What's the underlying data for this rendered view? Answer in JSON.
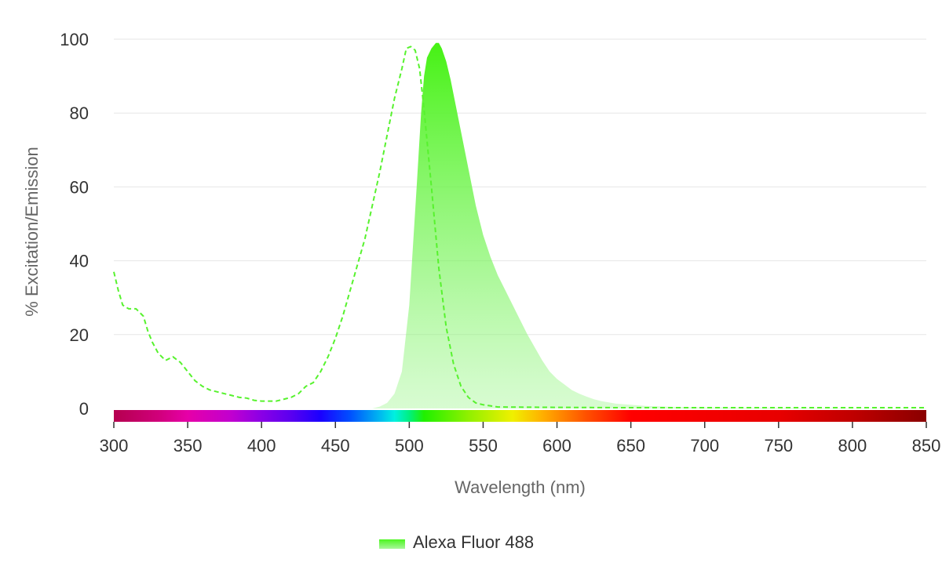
{
  "chart_data": {
    "type": "area",
    "xlabel": "Wavelength (nm)",
    "ylabel": "% Excitation/Emission",
    "xlim": [
      300,
      850
    ],
    "ylim": [
      0,
      100
    ],
    "x_ticks": [
      300,
      350,
      400,
      450,
      500,
      550,
      600,
      650,
      700,
      750,
      800,
      850
    ],
    "y_ticks": [
      0,
      20,
      40,
      60,
      80,
      100
    ],
    "grid": true,
    "legend_position": "bottom",
    "spectrum_bar": "visible",
    "series": [
      {
        "name": "Alexa Fluor 488",
        "role": "excitation",
        "style": "dashed-line",
        "color": "#57F22E",
        "x": [
          300,
          303,
          306,
          310,
          315,
          320,
          323,
          326,
          330,
          335,
          340,
          345,
          350,
          355,
          360,
          365,
          370,
          375,
          380,
          385,
          390,
          395,
          400,
          405,
          410,
          415,
          420,
          425,
          430,
          435,
          440,
          445,
          450,
          455,
          460,
          465,
          470,
          475,
          480,
          485,
          490,
          495,
          498,
          501,
          504,
          507,
          510,
          515,
          520,
          525,
          530,
          535,
          540,
          545,
          550,
          560,
          600,
          650,
          700,
          750,
          800,
          850
        ],
        "y": [
          37,
          32,
          28,
          27,
          27,
          25,
          21,
          18,
          15,
          13,
          14,
          12.5,
          10,
          7.5,
          6,
          5,
          4.5,
          4,
          3.5,
          3,
          2.8,
          2.2,
          2,
          2,
          2,
          2.5,
          3,
          4,
          6,
          7,
          10,
          14,
          19,
          25,
          32,
          39,
          46,
          55,
          64,
          74,
          84,
          92,
          97.5,
          98,
          97,
          92,
          81,
          60,
          38,
          22,
          12,
          6,
          3,
          1.5,
          1,
          0.4,
          0.3,
          0.2,
          0.2,
          0.2,
          0.2,
          0.2
        ]
      },
      {
        "name": "Alexa Fluor 488",
        "role": "emission",
        "style": "filled-area",
        "color": "#4CF51F",
        "x": [
          475,
          480,
          485,
          490,
          495,
          500,
          505,
          508,
          510,
          512,
          515,
          518,
          520,
          522,
          525,
          528,
          530,
          535,
          540,
          545,
          550,
          555,
          560,
          565,
          570,
          575,
          580,
          585,
          590,
          595,
          600,
          605,
          610,
          615,
          620,
          625,
          630,
          640,
          650,
          660,
          680,
          700,
          750,
          800,
          850
        ],
        "y": [
          0,
          0.5,
          1.5,
          4,
          10,
          28,
          60,
          80,
          90,
          95,
          97.5,
          99,
          99,
          97.5,
          94,
          89,
          85,
          75,
          65,
          55,
          47,
          41,
          36,
          32,
          28,
          24,
          20,
          16.5,
          13,
          10,
          8,
          6.5,
          5,
          4,
          3.2,
          2.5,
          2,
          1.3,
          1,
          0.7,
          0.4,
          0.3,
          0.2,
          0.1,
          0.05
        ]
      }
    ],
    "legend": [
      {
        "label": "Alexa Fluor 488",
        "color": "#4CF51F"
      }
    ],
    "x_tick_labels": [
      "300",
      "350",
      "400",
      "450",
      "500",
      "550",
      "600",
      "650",
      "700",
      "750",
      "800",
      "850"
    ],
    "y_tick_labels": [
      "0",
      "20",
      "40",
      "60",
      "80",
      "100"
    ]
  }
}
